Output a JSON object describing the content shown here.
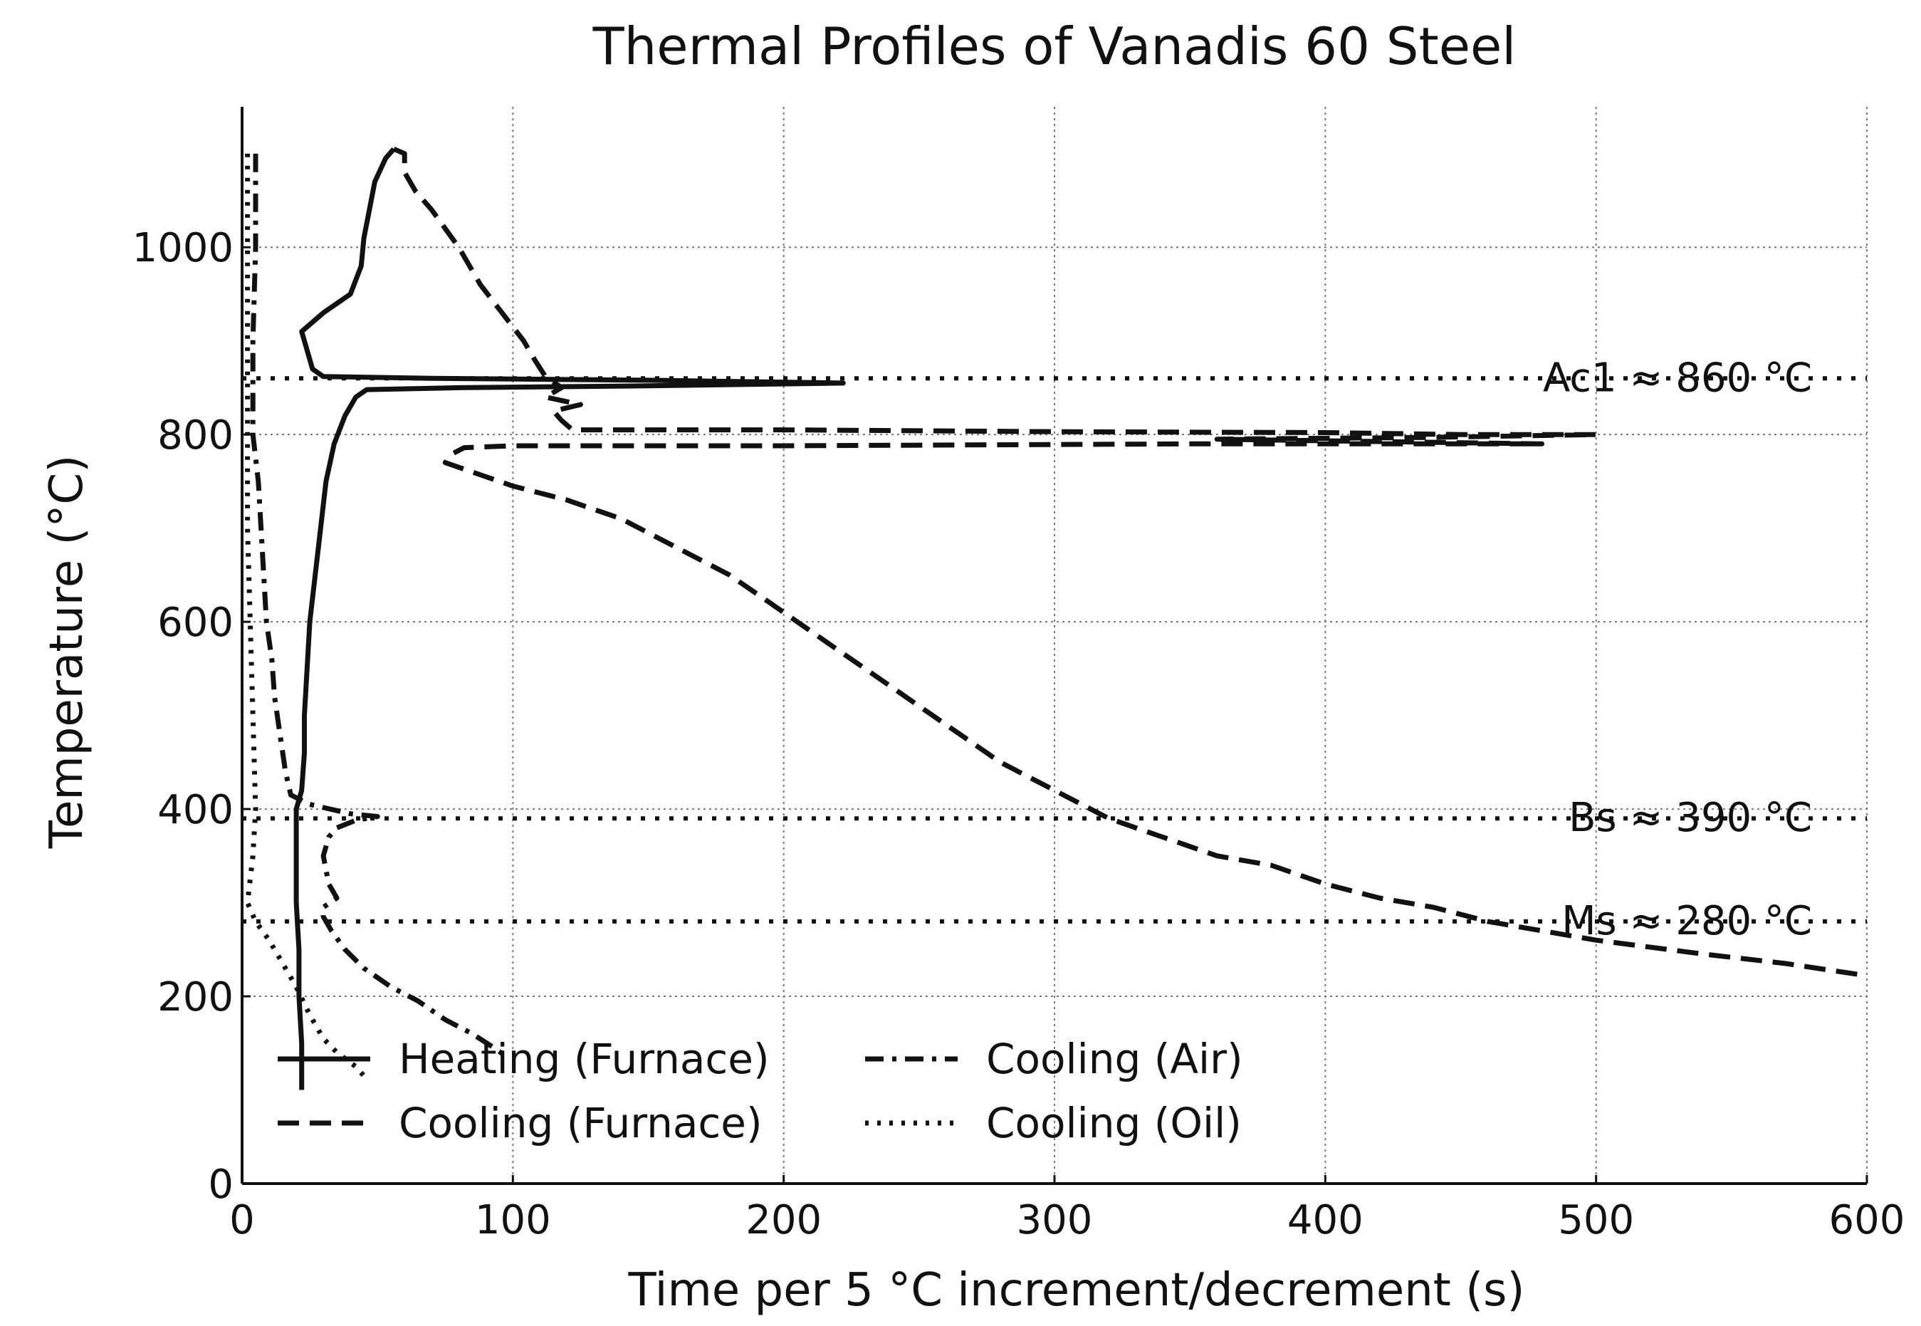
{
  "chart_data": {
    "type": "line",
    "title": "Thermal Profiles of Vanadis 60 Steel",
    "xlabel": "Time per 5 °C increment/decrement (s)",
    "ylabel": "Temperature (°C)",
    "xlim": [
      0,
      600
    ],
    "ylim": [
      0,
      1150
    ],
    "xticks": [
      0,
      100,
      200,
      300,
      400,
      500,
      600
    ],
    "yticks": [
      0,
      200,
      400,
      600,
      800,
      1000
    ],
    "grid": true,
    "legend_position": "lower-left",
    "reference_lines": [
      {
        "name": "Ac1",
        "y": 860,
        "label": "Ac1 ≈ 860 °C"
      },
      {
        "name": "Bs",
        "y": 390,
        "label": "Bs ≈ 390 °C"
      },
      {
        "name": "Ms",
        "y": 280,
        "label": "Ms ≈ 280 °C"
      }
    ],
    "series": [
      {
        "name": "Heating (Furnace)",
        "style": "solid",
        "points": [
          [
            22,
            100
          ],
          [
            22,
            150
          ],
          [
            21,
            200
          ],
          [
            21,
            250
          ],
          [
            20,
            300
          ],
          [
            20,
            350
          ],
          [
            20,
            400
          ],
          [
            22,
            420
          ],
          [
            23,
            460
          ],
          [
            23,
            500
          ],
          [
            24,
            550
          ],
          [
            25,
            600
          ],
          [
            27,
            650
          ],
          [
            29,
            700
          ],
          [
            31,
            750
          ],
          [
            34,
            790
          ],
          [
            38,
            820
          ],
          [
            42,
            840
          ],
          [
            46,
            848
          ],
          [
            80,
            850
          ],
          [
            150,
            852
          ],
          [
            222,
            855
          ],
          [
            150,
            858
          ],
          [
            70,
            860
          ],
          [
            30,
            862
          ],
          [
            26,
            870
          ],
          [
            24,
            890
          ],
          [
            22,
            910
          ],
          [
            30,
            930
          ],
          [
            40,
            950
          ],
          [
            44,
            980
          ],
          [
            45,
            1010
          ],
          [
            47,
            1040
          ],
          [
            49,
            1070
          ],
          [
            53,
            1095
          ],
          [
            56,
            1105
          ]
        ]
      },
      {
        "name": "Cooling (Furnace)",
        "style": "dashed",
        "points": [
          [
            56,
            1105
          ],
          [
            60,
            1100
          ],
          [
            60,
            1080
          ],
          [
            64,
            1060
          ],
          [
            70,
            1040
          ],
          [
            80,
            1000
          ],
          [
            88,
            960
          ],
          [
            96,
            930
          ],
          [
            104,
            900
          ],
          [
            108,
            880
          ],
          [
            112,
            862
          ],
          [
            118,
            850
          ],
          [
            112,
            840
          ],
          [
            125,
            832
          ],
          [
            115,
            825
          ],
          [
            118,
            815
          ],
          [
            122,
            805
          ],
          [
            200,
            805
          ],
          [
            300,
            803
          ],
          [
            400,
            802
          ],
          [
            450,
            800
          ],
          [
            500,
            800
          ],
          [
            440,
            797
          ],
          [
            360,
            795
          ],
          [
            480,
            790
          ],
          [
            350,
            790
          ],
          [
            200,
            788
          ],
          [
            100,
            788
          ],
          [
            82,
            786
          ],
          [
            78,
            780
          ],
          [
            75,
            770
          ],
          [
            85,
            760
          ],
          [
            100,
            745
          ],
          [
            120,
            730
          ],
          [
            140,
            710
          ],
          [
            160,
            680
          ],
          [
            180,
            650
          ],
          [
            195,
            620
          ],
          [
            210,
            590
          ],
          [
            220,
            570
          ],
          [
            235,
            540
          ],
          [
            250,
            510
          ],
          [
            265,
            480
          ],
          [
            280,
            450
          ],
          [
            300,
            420
          ],
          [
            320,
            390
          ],
          [
            340,
            370
          ],
          [
            360,
            350
          ],
          [
            380,
            340
          ],
          [
            400,
            320
          ],
          [
            420,
            305
          ],
          [
            440,
            295
          ],
          [
            460,
            280
          ],
          [
            480,
            270
          ],
          [
            500,
            260
          ],
          [
            540,
            245
          ],
          [
            570,
            235
          ],
          [
            600,
            222
          ]
        ]
      },
      {
        "name": "Cooling (Air)",
        "style": "dashdot",
        "points": [
          [
            5,
            1100
          ],
          [
            5,
            1000
          ],
          [
            4,
            900
          ],
          [
            4,
            850
          ],
          [
            4,
            800
          ],
          [
            6,
            750
          ],
          [
            7,
            700
          ],
          [
            8,
            650
          ],
          [
            9,
            600
          ],
          [
            11,
            560
          ],
          [
            12,
            520
          ],
          [
            14,
            480
          ],
          [
            16,
            440
          ],
          [
            18,
            415
          ],
          [
            25,
            405
          ],
          [
            40,
            395
          ],
          [
            50,
            392
          ],
          [
            42,
            388
          ],
          [
            35,
            380
          ],
          [
            32,
            370
          ],
          [
            30,
            350
          ],
          [
            32,
            320
          ],
          [
            35,
            305
          ],
          [
            30,
            295
          ],
          [
            30,
            285
          ],
          [
            33,
            270
          ],
          [
            38,
            250
          ],
          [
            45,
            230
          ],
          [
            55,
            210
          ],
          [
            65,
            195
          ],
          [
            75,
            175
          ],
          [
            85,
            160
          ],
          [
            93,
            145
          ],
          [
            98,
            135
          ]
        ]
      },
      {
        "name": "Cooling (Oil)",
        "style": "dotted",
        "points": [
          [
            2,
            1100
          ],
          [
            2,
            1000
          ],
          [
            2,
            900
          ],
          [
            2,
            800
          ],
          [
            2,
            700
          ],
          [
            3,
            600
          ],
          [
            4,
            500
          ],
          [
            5,
            400
          ],
          [
            4,
            350
          ],
          [
            2,
            300
          ],
          [
            5,
            280
          ],
          [
            10,
            260
          ],
          [
            15,
            235
          ],
          [
            20,
            210
          ],
          [
            25,
            180
          ],
          [
            30,
            155
          ],
          [
            35,
            140
          ],
          [
            42,
            125
          ],
          [
            45,
            115
          ]
        ]
      }
    ]
  },
  "legend": [
    {
      "label": "Heating (Furnace)",
      "style": "solid"
    },
    {
      "label": "Cooling (Air)",
      "style": "dashdot"
    },
    {
      "label": "Cooling (Furnace)",
      "style": "dashed"
    },
    {
      "label": "Cooling (Oil)",
      "style": "dotted"
    }
  ]
}
